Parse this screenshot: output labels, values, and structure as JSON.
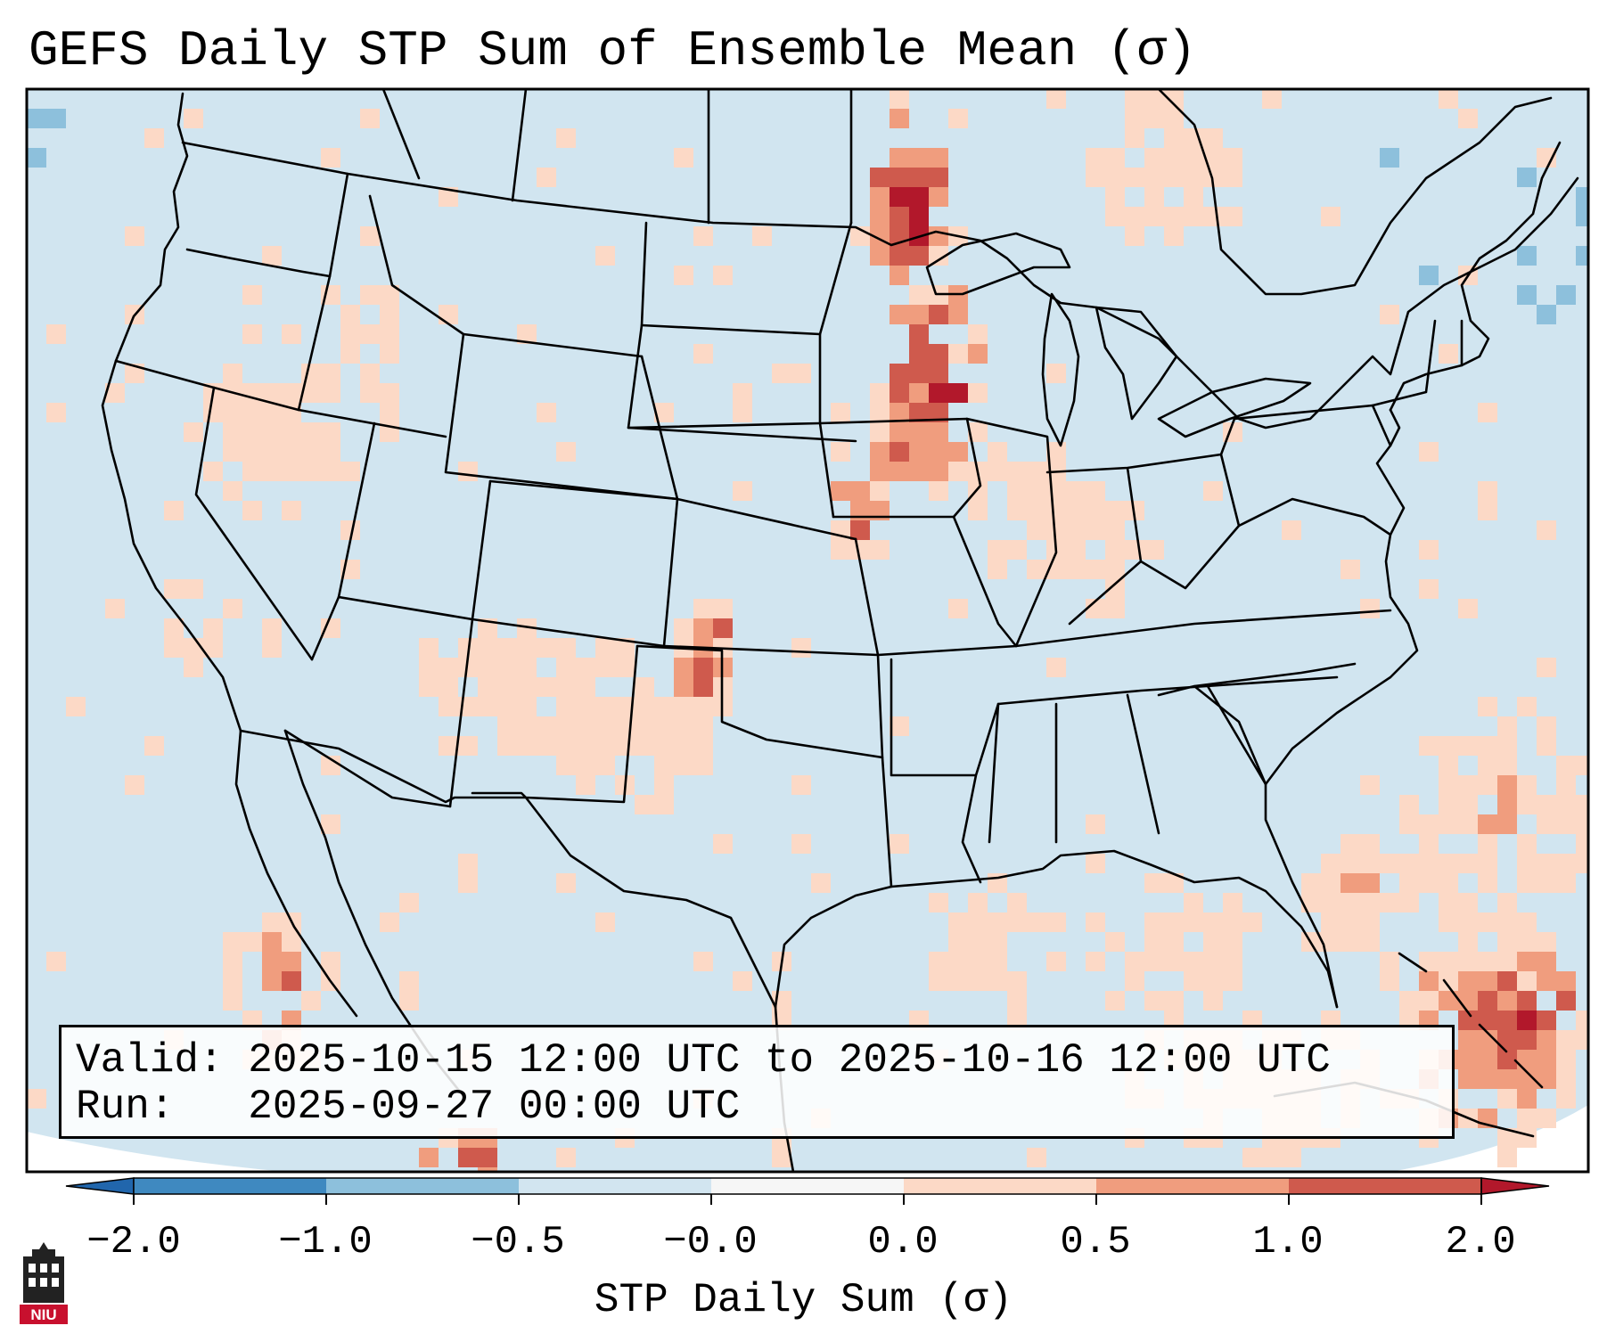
{
  "title": "GEFS Daily STP Sum of Ensemble Mean (σ)",
  "info": {
    "valid_line": "Valid: 2025-10-15 12:00 UTC to 2025-10-16 12:00 UTC",
    "run_line": "Run:   2025-09-27 00:00 UTC"
  },
  "colorbar": {
    "label": "STP Daily Sum (σ)",
    "ticks": [
      "−2.0",
      "−1.0",
      "−0.5",
      "−0.0",
      "0.0",
      "0.5",
      "1.0",
      "2.0"
    ],
    "colors": [
      "#3f89c0",
      "#8dc0dc",
      "#d2e5f0",
      "#f6f6f6",
      "#fcd9c6",
      "#f09d7e",
      "#cf5a4d",
      "#b2182b"
    ],
    "extend_low_color": "#2166ac",
    "extend_high_color": "#b2182b"
  },
  "map": {
    "background_color": "#d1e5f0",
    "regions": [
      {
        "name": "northern-plains-maximum",
        "level": "2.0"
      },
      {
        "name": "upper-midwest-maximum",
        "level": "2.0"
      },
      {
        "name": "southern-plains-corridor",
        "level": "1.0"
      },
      {
        "name": "western-atlantic",
        "level": "0.5"
      },
      {
        "name": "bahamas",
        "level": "2.0"
      },
      {
        "name": "mexico-pacific-coast",
        "level": "1.0"
      }
    ]
  },
  "logo": {
    "text": "NIU",
    "color": "#c8102e"
  }
}
